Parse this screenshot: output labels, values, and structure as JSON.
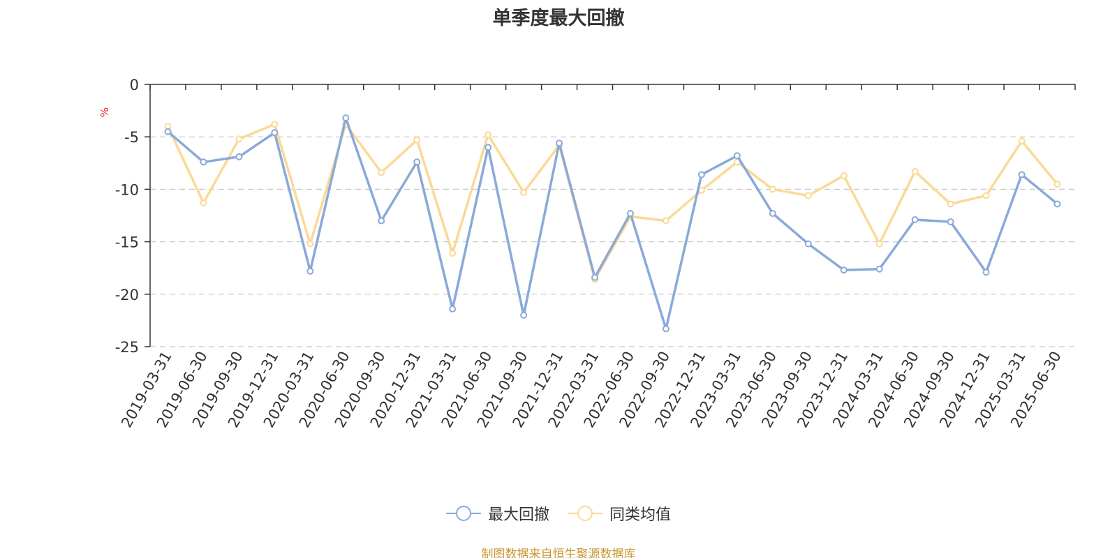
{
  "chart_data": {
    "type": "line",
    "title": "单季度最大回撤",
    "ylabel": "%",
    "xlabel": "",
    "ylim": [
      -25,
      0
    ],
    "yticks": [
      "0",
      "-5",
      "-10",
      "-15",
      "-20",
      "-25"
    ],
    "grid": true,
    "legend_position": "bottom",
    "categories": [
      "2019-03-31",
      "2019-06-30",
      "2019-09-30",
      "2019-12-31",
      "2020-03-31",
      "2020-06-30",
      "2020-09-30",
      "2020-12-31",
      "2021-03-31",
      "2021-06-30",
      "2021-09-30",
      "2021-12-31",
      "2022-03-31",
      "2022-06-30",
      "2022-09-30",
      "2022-12-31",
      "2023-03-31",
      "2023-06-30",
      "2023-09-30",
      "2023-12-31",
      "2024-03-31",
      "2024-06-30",
      "2024-09-30",
      "2024-12-31",
      "2025-03-31",
      "2025-06-30"
    ],
    "series": [
      {
        "name": "最大回撤",
        "color": "#8aa9d9",
        "values": [
          -4.5,
          -7.4,
          -6.9,
          -4.6,
          -17.8,
          -3.2,
          -13.0,
          -7.4,
          -21.4,
          -6.0,
          -22.0,
          -5.6,
          -18.4,
          -12.3,
          -23.3,
          -8.6,
          -6.8,
          -12.3,
          -15.2,
          -17.7,
          -17.6,
          -12.9,
          -13.1,
          -17.9,
          -8.6,
          -11.4
        ]
      },
      {
        "name": "同类均值",
        "color": "#fbd996",
        "values": [
          -4.0,
          -11.3,
          -5.2,
          -3.8,
          -15.2,
          -3.8,
          -8.4,
          -5.3,
          -16.1,
          -4.8,
          -10.3,
          -5.8,
          -18.6,
          -12.6,
          -13.0,
          -10.1,
          -7.4,
          -10.0,
          -10.6,
          -8.7,
          -15.2,
          -8.3,
          -11.4,
          -10.6,
          -5.4,
          -9.5
        ]
      }
    ]
  },
  "footer": {
    "source": "制图数据来自恒生聚源数据库"
  }
}
